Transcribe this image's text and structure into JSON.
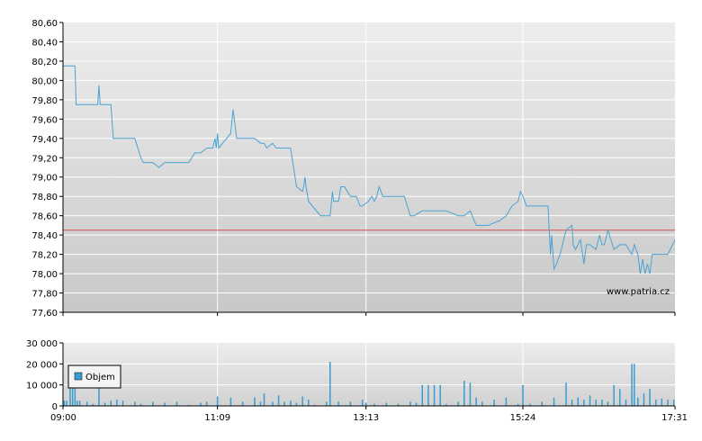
{
  "watermark": "www.patria.cz",
  "colors": {
    "price_line": "#4ba3d4",
    "reference_line": "#d9534f",
    "volume_fill": "#3a9ccf",
    "volume_stroke": "#2b7fae",
    "grid": "#ffffff",
    "axis": "#000000"
  },
  "chart_data": [
    {
      "type": "line",
      "title": "",
      "xlabel": "",
      "ylabel": "",
      "x_ticks": [
        "09:00",
        "11:09",
        "13:13",
        "15:24",
        "17:31"
      ],
      "y_ticks": [
        "80,60",
        "80,40",
        "80,20",
        "80,00",
        "79,80",
        "79,60",
        "79,40",
        "79,20",
        "79,00",
        "78,80",
        "78,60",
        "78,40",
        "78,20",
        "78,00",
        "77,80",
        "77,60"
      ],
      "ylim": [
        77.6,
        80.6
      ],
      "xlim": [
        "09:00",
        "17:31"
      ],
      "grid": true,
      "reference_value": 78.45,
      "series": [
        {
          "x": [
            "09:00",
            "09:10",
            "09:11",
            "09:15",
            "09:29",
            "09:30",
            "09:31",
            "09:40",
            "09:42",
            "09:50",
            "10:00",
            "10:05",
            "10:07",
            "10:10",
            "10:15",
            "10:20",
            "10:25",
            "10:35",
            "10:45",
            "10:50",
            "10:55",
            "11:00",
            "11:05",
            "11:07",
            "11:08",
            "11:09",
            "11:10",
            "11:20",
            "11:22",
            "11:25",
            "11:30",
            "11:40",
            "11:45",
            "11:48",
            "11:50",
            "11:55",
            "11:58",
            "12:00",
            "12:10",
            "12:15",
            "12:20",
            "12:21",
            "12:22",
            "12:23",
            "12:25",
            "12:35",
            "12:43",
            "12:45",
            "12:46",
            "12:50",
            "12:52",
            "12:55",
            "13:00",
            "13:05",
            "13:08",
            "13:10",
            "13:15",
            "13:18",
            "13:20",
            "13:22",
            "13:24",
            "13:27",
            "13:30",
            "13:40",
            "13:45",
            "13:50",
            "13:53",
            "14:00",
            "14:05",
            "14:10",
            "14:20",
            "14:30",
            "14:35",
            "14:40",
            "14:45",
            "14:50",
            "14:55",
            "15:05",
            "15:10",
            "15:15",
            "15:20",
            "15:22",
            "15:24",
            "15:27",
            "15:30",
            "15:45",
            "15:47",
            "15:48",
            "15:50",
            "15:52",
            "15:55",
            "16:00",
            "16:05",
            "16:06",
            "16:08",
            "16:10",
            "16:12",
            "16:15",
            "16:17",
            "16:20",
            "16:25",
            "16:28",
            "16:30",
            "16:32",
            "16:35",
            "16:40",
            "16:45",
            "16:50",
            "16:55",
            "16:57",
            "17:00",
            "17:02",
            "17:04",
            "17:06",
            "17:08",
            "17:10",
            "17:12",
            "17:15",
            "17:20",
            "17:25",
            "17:31"
          ],
          "y": [
            80.15,
            80.15,
            79.75,
            79.75,
            79.75,
            79.95,
            79.75,
            79.75,
            79.4,
            79.4,
            79.4,
            79.2,
            79.15,
            79.15,
            79.15,
            79.1,
            79.15,
            79.15,
            79.15,
            79.25,
            79.25,
            79.3,
            79.3,
            79.4,
            79.3,
            79.45,
            79.3,
            79.45,
            79.7,
            79.4,
            79.4,
            79.4,
            79.35,
            79.35,
            79.3,
            79.35,
            79.3,
            79.3,
            79.3,
            78.9,
            78.85,
            78.9,
            79.0,
            78.9,
            78.75,
            78.6,
            78.6,
            78.85,
            78.75,
            78.75,
            78.9,
            78.9,
            78.8,
            78.8,
            78.7,
            78.7,
            78.75,
            78.8,
            78.75,
            78.8,
            78.9,
            78.8,
            78.8,
            78.8,
            78.8,
            78.6,
            78.6,
            78.65,
            78.65,
            78.65,
            78.65,
            78.6,
            78.6,
            78.65,
            78.5,
            78.5,
            78.5,
            78.55,
            78.6,
            78.7,
            78.75,
            78.85,
            78.8,
            78.7,
            78.7,
            78.7,
            78.2,
            78.4,
            78.05,
            78.1,
            78.2,
            78.45,
            78.5,
            78.3,
            78.25,
            78.3,
            78.35,
            78.1,
            78.3,
            78.3,
            78.25,
            78.4,
            78.3,
            78.3,
            78.45,
            78.25,
            78.3,
            78.3,
            78.2,
            78.3,
            78.2,
            78.0,
            78.15,
            78.0,
            78.1,
            78.0,
            78.2,
            78.2,
            78.2,
            78.2,
            78.35
          ]
        }
      ]
    },
    {
      "type": "bar",
      "title": "",
      "xlabel": "",
      "ylabel": "",
      "legend": [
        "Objem"
      ],
      "legend_position": "bottom-left",
      "x_ticks": [
        "09:00",
        "11:09",
        "13:13",
        "15:24",
        "17:31"
      ],
      "y_ticks": [
        "30 000",
        "20 000",
        "10 000",
        "0"
      ],
      "ylim": [
        0,
        30000
      ],
      "grid": true,
      "series": [
        {
          "name": "Objem",
          "x": [
            "09:01",
            "09:03",
            "09:06",
            "09:08",
            "09:10",
            "09:12",
            "09:14",
            "09:20",
            "09:25",
            "09:30",
            "09:35",
            "09:40",
            "09:45",
            "09:50",
            "10:00",
            "10:05",
            "10:15",
            "10:25",
            "10:35",
            "10:45",
            "10:55",
            "11:00",
            "11:09",
            "11:20",
            "11:30",
            "11:40",
            "11:45",
            "11:48",
            "11:55",
            "12:00",
            "12:05",
            "12:10",
            "12:15",
            "12:20",
            "12:25",
            "12:30",
            "12:40",
            "12:43",
            "12:50",
            "13:00",
            "13:10",
            "13:13",
            "13:20",
            "13:30",
            "13:40",
            "13:50",
            "13:55",
            "14:00",
            "14:05",
            "14:10",
            "14:15",
            "14:20",
            "14:30",
            "14:35",
            "14:40",
            "14:45",
            "14:50",
            "15:00",
            "15:10",
            "15:20",
            "15:24",
            "15:30",
            "15:40",
            "15:50",
            "16:00",
            "16:05",
            "16:10",
            "16:15",
            "16:20",
            "16:25",
            "16:30",
            "16:35",
            "16:40",
            "16:45",
            "16:50",
            "16:55",
            "16:57",
            "17:00",
            "17:05",
            "17:10",
            "17:15",
            "17:20",
            "17:25",
            "17:30"
          ],
          "values": [
            2500,
            2500,
            9000,
            9000,
            9000,
            2500,
            2500,
            2000,
            1000,
            9000,
            1500,
            2500,
            3000,
            2500,
            2000,
            1000,
            2000,
            1500,
            2000,
            500,
            1500,
            2000,
            4500,
            4000,
            2000,
            4000,
            2000,
            6000,
            2000,
            5000,
            2000,
            2500,
            1500,
            4500,
            3000,
            500,
            2000,
            21000,
            2000,
            2000,
            3000,
            1500,
            1000,
            1500,
            1000,
            2000,
            1500,
            10000,
            10000,
            10000,
            10000,
            1000,
            2000,
            12000,
            11000,
            4000,
            2000,
            3000,
            4000,
            1000,
            10000,
            1000,
            2000,
            4000,
            11000,
            3000,
            4000,
            3000,
            5000,
            3000,
            3000,
            2000,
            10000,
            8000,
            3000,
            20000,
            20000,
            4000,
            6000,
            8000,
            3000,
            3500,
            3000,
            3000
          ]
        }
      ]
    }
  ]
}
